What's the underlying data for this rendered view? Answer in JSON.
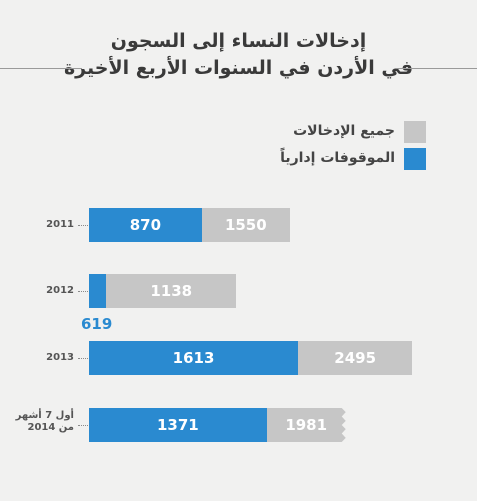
{
  "chart_data": {
    "type": "bar",
    "orientation": "horizontal",
    "stacked": false,
    "title_line1": "إدخالات النساء إلى السجون",
    "title_line2": "في الأردن في السنوات الأربع الأخيرة",
    "legend": [
      {
        "label": "جميع الإدخالات",
        "color": "#c6c6c6"
      },
      {
        "label": "الموقوفات إدارياً",
        "color": "#2a8ad0"
      }
    ],
    "categories": [
      "2011",
      "2012",
      "2013",
      "أول 7 أشهر من 2014"
    ],
    "series": [
      {
        "name": "جميع الإدخالات",
        "values": [
          1550,
          1138,
          2495,
          1981
        ]
      },
      {
        "name": "الموقوفات إدارياً",
        "values": [
          870,
          619,
          1613,
          1371
        ]
      }
    ],
    "legend_position": "top-right",
    "grid": false
  }
}
